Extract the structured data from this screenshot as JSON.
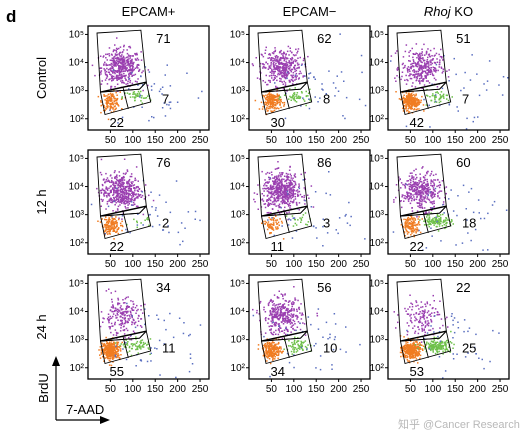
{
  "panel_letter": "d",
  "watermark": "知乎 @Cancer Research",
  "colors": {
    "high": "#9a3fb0",
    "low_left": "#f07c22",
    "low_right": "#6ec04a",
    "other": "#5a6fc0"
  },
  "chart_data": {
    "type": "scatter",
    "panel_letter": "d",
    "columns": [
      "EPCAM+",
      "EPCAM−",
      "Rhoj KO"
    ],
    "column_styles": [
      "normal",
      "normal",
      "italic"
    ],
    "rows": [
      "Control",
      "12 h",
      "24 h"
    ],
    "xlabel": "7-AAD",
    "ylabel": "BrdU",
    "x_ticks": [
      "50",
      "100",
      "150",
      "200",
      "250"
    ],
    "x_range": [
      0,
      270
    ],
    "y_ticks": [
      "10²",
      "10³",
      "10⁴",
      "10⁵"
    ],
    "y_log": true,
    "y_range": [
      1.6,
      5.3
    ],
    "y_tick_values": [
      2,
      3,
      4,
      5
    ],
    "grid": false,
    "gate_percentages": [
      {
        "row": "Control",
        "column": "EPCAM+",
        "brdu_high": "71",
        "brdu_low_right": "7",
        "brdu_low_left": "22"
      },
      {
        "row": "Control",
        "column": "EPCAM−",
        "brdu_high": "62",
        "brdu_low_right": "8",
        "brdu_low_left": "30"
      },
      {
        "row": "Control",
        "column": "Rhoj KO",
        "brdu_high": "51",
        "brdu_low_right": "7",
        "brdu_low_left": "42"
      },
      {
        "row": "12 h",
        "column": "EPCAM+",
        "brdu_high": "76",
        "brdu_low_right": "2",
        "brdu_low_left": "22"
      },
      {
        "row": "12 h",
        "column": "EPCAM−",
        "brdu_high": "86",
        "brdu_low_right": "3",
        "brdu_low_left": "11"
      },
      {
        "row": "12 h",
        "column": "Rhoj KO",
        "brdu_high": "60",
        "brdu_low_right": "18",
        "brdu_low_left": "22"
      },
      {
        "row": "24 h",
        "column": "EPCAM+",
        "brdu_high": "34",
        "brdu_low_right": "11",
        "brdu_low_left": "55"
      },
      {
        "row": "24 h",
        "column": "EPCAM−",
        "brdu_high": "56",
        "brdu_low_right": "10",
        "brdu_low_left": "34"
      },
      {
        "row": "24 h",
        "column": "Rhoj KO",
        "brdu_high": "22",
        "brdu_low_right": "25",
        "brdu_low_left": "53"
      }
    ]
  }
}
